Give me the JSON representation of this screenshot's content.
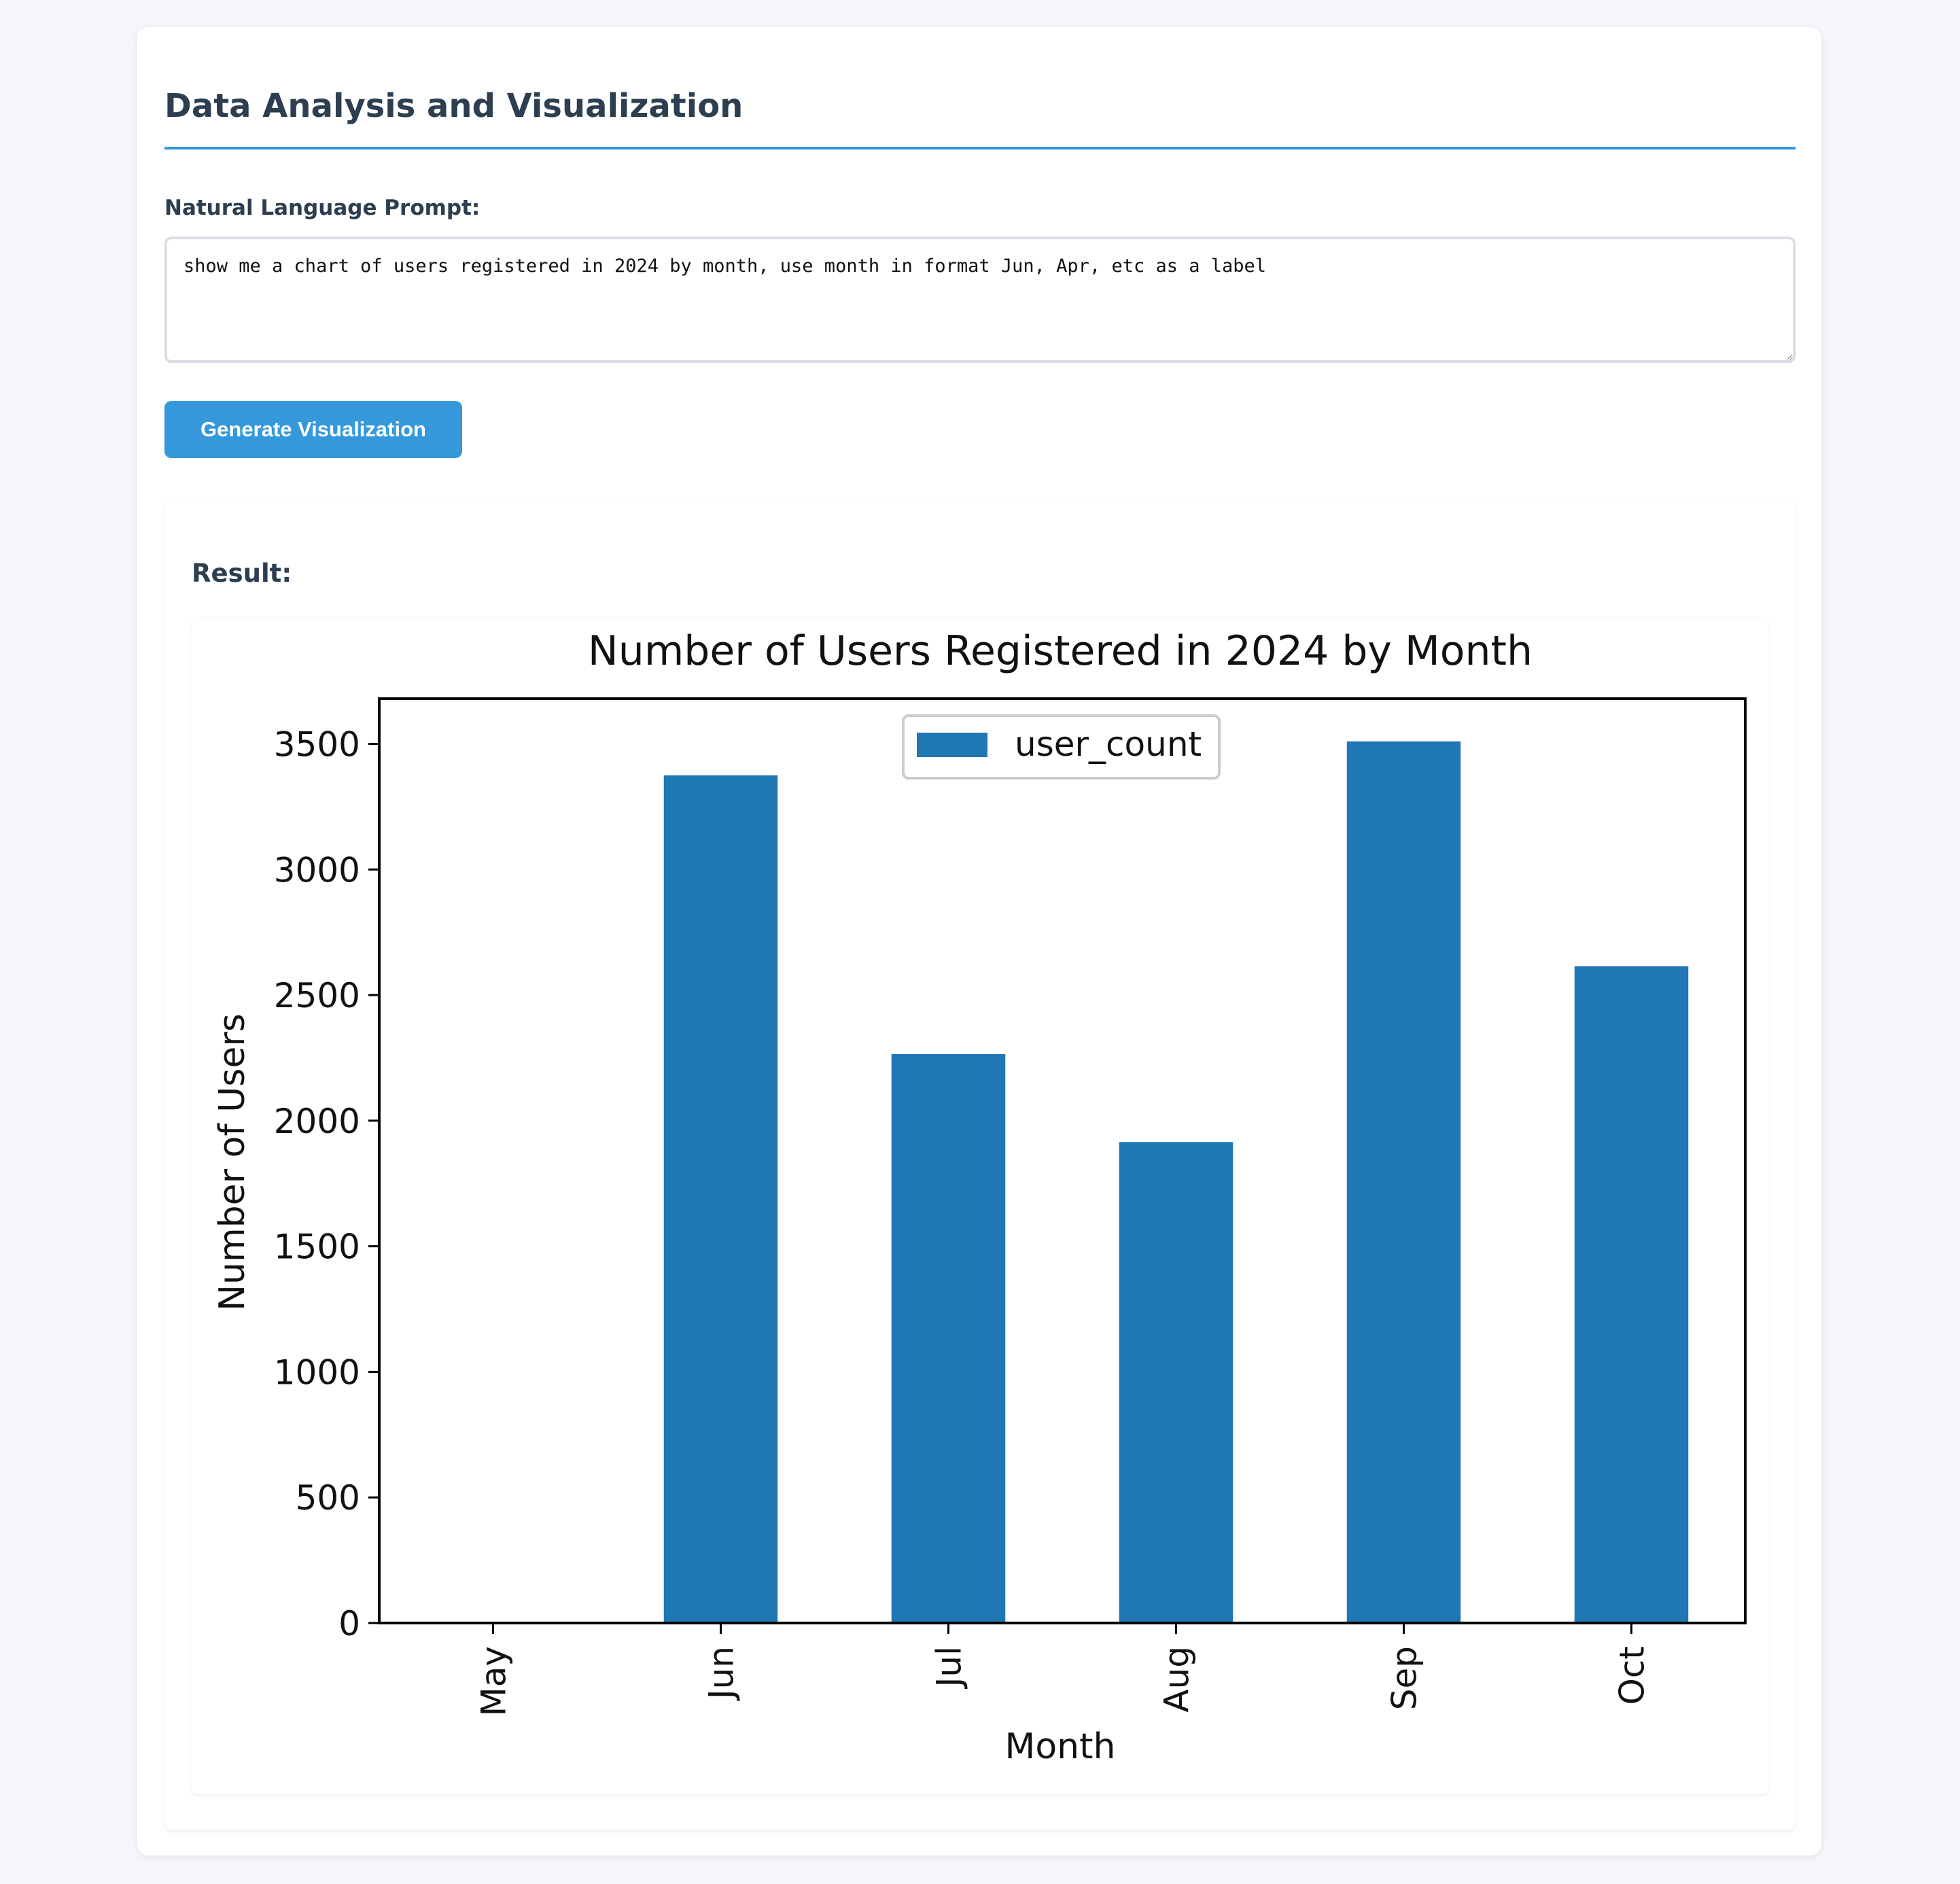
{
  "header": {
    "title": "Data Analysis and Visualization"
  },
  "prompt": {
    "label": "Natural Language Prompt:",
    "value": "show me a chart of users registered in 2024 by month, use month in format Jun, Apr, etc as a label"
  },
  "actions": {
    "generate_label": "Generate Visualization"
  },
  "result": {
    "label": "Result:"
  },
  "colors": {
    "accent": "#3498db",
    "bar": "#1f77b4",
    "heading": "#2c3e50"
  },
  "chart_data": {
    "type": "bar",
    "title": "Number of Users Registered in 2024 by Month",
    "xlabel": "Month",
    "ylabel": "Number of Users",
    "categories": [
      "May",
      "Jun",
      "Jul",
      "Aug",
      "Sep",
      "Oct"
    ],
    "series": [
      {
        "name": "user_count",
        "values": [
          0,
          3375,
          2265,
          1915,
          3510,
          2615
        ]
      }
    ],
    "ylim": [
      0,
      3680
    ],
    "yticks": [
      0,
      500,
      1000,
      1500,
      2000,
      2500,
      3000,
      3500
    ],
    "legend": "top-center",
    "grid": false
  }
}
